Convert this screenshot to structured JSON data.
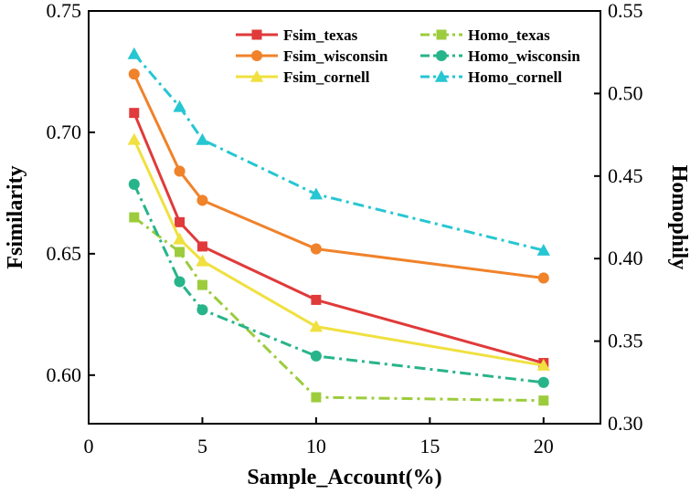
{
  "chart_data": {
    "type": "line",
    "xlabel": "Sample_Account(%)",
    "ylabel": "Fsimilarity",
    "y2label": "Homophily",
    "xlim": [
      0,
      22.5
    ],
    "ylim": [
      0.58,
      0.75
    ],
    "y2lim": [
      0.3,
      0.55
    ],
    "xticks": [
      0,
      5,
      10,
      15,
      20
    ],
    "yticks": [
      0.6,
      0.65,
      0.7,
      0.75
    ],
    "y2ticks": [
      0.3,
      0.35,
      0.4,
      0.45,
      0.5,
      0.55
    ],
    "xtick_labels": [
      "0",
      "5",
      "10",
      "15",
      "20"
    ],
    "ytick_labels": [
      "0.60",
      "0.65",
      "0.70",
      "0.75"
    ],
    "y2tick_labels": [
      "0.30",
      "0.35",
      "0.40",
      "0.45",
      "0.50",
      "0.55"
    ],
    "grid": false,
    "legend_position": "top-right",
    "x": [
      2,
      4,
      5,
      10,
      20
    ],
    "series": [
      {
        "name": "Fsim_texas",
        "axis": "left",
        "color": "#e03a3a",
        "dash": "solid",
        "marker": "square",
        "values": [
          0.708,
          0.663,
          0.653,
          0.631,
          0.605
        ]
      },
      {
        "name": "Fsim_wisconsin",
        "axis": "left",
        "color": "#f0822a",
        "dash": "solid",
        "marker": "circle",
        "values": [
          0.724,
          0.684,
          0.672,
          0.652,
          0.64
        ]
      },
      {
        "name": "Fsim_cornell",
        "axis": "left",
        "color": "#f0e040",
        "dash": "solid",
        "marker": "triangle",
        "values": [
          0.697,
          0.656,
          0.647,
          0.62,
          0.604
        ]
      },
      {
        "name": "Homo_texas",
        "axis": "right",
        "color": "#9ccc3c",
        "dash": "dashdot",
        "marker": "square",
        "values": [
          0.425,
          0.404,
          0.384,
          0.316,
          0.314
        ]
      },
      {
        "name": "Homo_wisconsin",
        "axis": "right",
        "color": "#28b48a",
        "dash": "dashdot",
        "marker": "circle",
        "values": [
          0.445,
          0.386,
          0.369,
          0.341,
          0.325
        ]
      },
      {
        "name": "Homo_cornell",
        "axis": "right",
        "color": "#26c6d2",
        "dash": "dashdot",
        "marker": "triangle",
        "values": [
          0.524,
          0.492,
          0.472,
          0.439,
          0.405
        ]
      }
    ]
  }
}
